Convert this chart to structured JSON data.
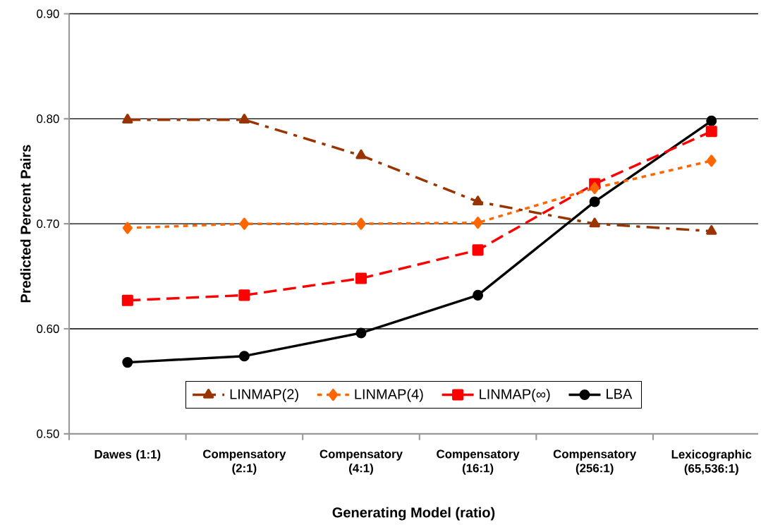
{
  "chart_data": {
    "type": "line",
    "xlabel": "Generating Model (ratio)",
    "ylabel": "Predicted Percent Pairs",
    "categories": [
      "Dawes (1:1)",
      "Compensatory (2:1)",
      "Compensatory (4:1)",
      "Compensatory (16:1)",
      "Compensatory (256:1)",
      "Lexicographic (65,536:1)"
    ],
    "series": [
      {
        "name": "LINMAP(2)",
        "color": "#993300",
        "marker": "triangle",
        "line_style": "dashdot",
        "values": [
          0.799,
          0.799,
          0.765,
          0.721,
          0.7,
          0.693
        ]
      },
      {
        "name": "LINMAP(4)",
        "color": "#ff6600",
        "marker": "diamond",
        "line_style": "dotted",
        "values": [
          0.696,
          0.7,
          0.7,
          0.701,
          0.734,
          0.76
        ]
      },
      {
        "name": "LINMAP(∞)",
        "color": "#ff0000",
        "marker": "square",
        "line_style": "dashed",
        "values": [
          0.627,
          0.632,
          0.648,
          0.675,
          0.738,
          0.788
        ]
      },
      {
        "name": "LBA",
        "color": "#000000",
        "marker": "circle",
        "line_style": "solid",
        "values": [
          0.568,
          0.574,
          0.596,
          0.632,
          0.721,
          0.798
        ]
      }
    ],
    "ylim": [
      0.5,
      0.9
    ],
    "yticks": [
      {
        "value": 0.5,
        "label": "0.50"
      },
      {
        "value": 0.6,
        "label": "0.60"
      },
      {
        "value": 0.7,
        "label": "0.70"
      },
      {
        "value": 0.8,
        "label": "0.80"
      },
      {
        "value": 0.9,
        "label": "0.90"
      }
    ],
    "grid": "y",
    "legend": "bottom"
  }
}
